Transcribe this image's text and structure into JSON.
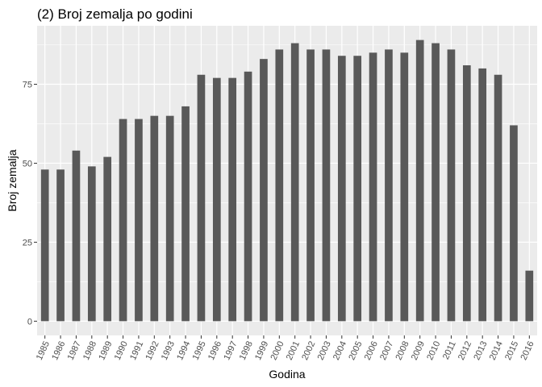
{
  "chart_data": {
    "type": "bar",
    "title": "(2) Broj zemalja po godini",
    "xlabel": "Godina",
    "ylabel": "Broj zemalja",
    "categories": [
      "1985",
      "1986",
      "1987",
      "1988",
      "1989",
      "1990",
      "1991",
      "1992",
      "1993",
      "1994",
      "1995",
      "1996",
      "1997",
      "1998",
      "1999",
      "2000",
      "2001",
      "2002",
      "2003",
      "2004",
      "2005",
      "2006",
      "2007",
      "2008",
      "2009",
      "2010",
      "2011",
      "2012",
      "2013",
      "2014",
      "2015",
      "2016"
    ],
    "values": [
      48,
      48,
      54,
      49,
      52,
      64,
      64,
      65,
      65,
      68,
      78,
      77,
      77,
      79,
      83,
      86,
      88,
      86,
      86,
      84,
      84,
      85,
      86,
      85,
      89,
      88,
      86,
      81,
      80,
      78,
      62,
      16
    ],
    "yticks": [
      0,
      25,
      50,
      75
    ],
    "ylim": [
      -4.5,
      93.5
    ],
    "grid": true,
    "colors": {
      "panel": "#ebebeb",
      "bar": "#595959",
      "grid": "#ffffff"
    }
  }
}
